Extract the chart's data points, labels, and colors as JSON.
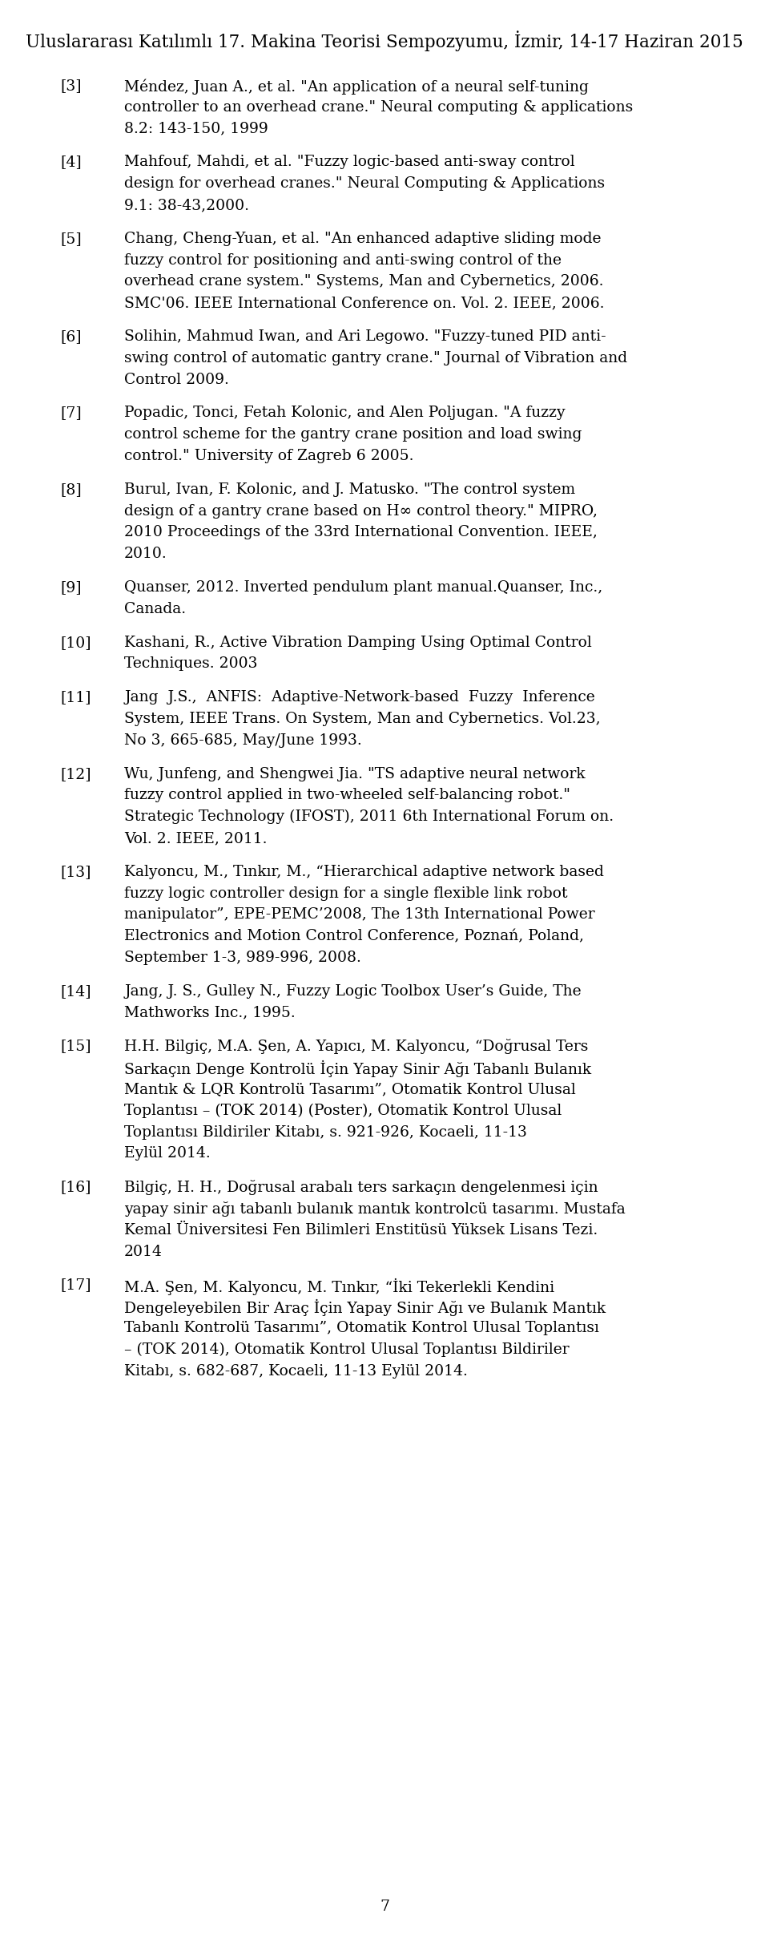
{
  "header": "Uluslararası Katılımlı 17. Makina Teorisi Sempozyumu, İzmir, 14-17 Haziran 2015",
  "page_number": "7",
  "references": [
    {
      "number": "[3]",
      "lines": [
        "Méndez, Juan A., et al. \"An application of a neural self-tuning",
        "controller to an overhead crane.\" Neural computing & applications",
        "8.2: 143-150, 1999"
      ]
    },
    {
      "number": "[4]",
      "lines": [
        "Mahfouf, Mahdi, et al. \"Fuzzy logic-based anti-sway control",
        "design for overhead cranes.\" Neural Computing & Applications",
        "9.1: 38-43,2000."
      ]
    },
    {
      "number": "[5]",
      "lines": [
        "Chang, Cheng-Yuan, et al. \"An enhanced adaptive sliding mode",
        "fuzzy control for positioning and anti-swing control of the",
        "overhead crane system.\" Systems, Man and Cybernetics, 2006.",
        "SMC'06. IEEE International Conference on. Vol. 2. IEEE, 2006."
      ]
    },
    {
      "number": "[6]",
      "lines": [
        "Solihin, Mahmud Iwan, and Ari Legowo. \"Fuzzy-tuned PID anti-",
        "swing control of automatic gantry crane.\" Journal of Vibration and",
        "Control 2009."
      ]
    },
    {
      "number": "[7]",
      "lines": [
        "Popadic, Tonci, Fetah Kolonic, and Alen Poljugan. \"A fuzzy",
        "control scheme for the gantry crane position and load swing",
        "control.\" University of Zagreb 6 2005."
      ]
    },
    {
      "number": "[8]",
      "lines": [
        "Burul, Ivan, F. Kolonic, and J. Matusko. \"The control system",
        "design of a gantry crane based on H∞ control theory.\" MIPRO,",
        "2010 Proceedings of the 33rd International Convention. IEEE,",
        "2010."
      ]
    },
    {
      "number": "[9]",
      "lines": [
        "Quanser, 2012. Inverted pendulum plant manual.Quanser, Inc.,",
        "Canada."
      ]
    },
    {
      "number": "[10]",
      "lines": [
        "Kashani, R., Active Vibration Damping Using Optimal Control",
        "Techniques. 2003"
      ]
    },
    {
      "number": "[11]",
      "lines": [
        "Jang  J.S.,  ANFIS:  Adaptive-Network-based  Fuzzy  Inference",
        "System, IEEE Trans. On System, Man and Cybernetics. Vol.23,",
        "No 3, 665-685, May/June 1993."
      ]
    },
    {
      "number": "[12]",
      "lines": [
        "Wu, Junfeng, and Shengwei Jia. \"TS adaptive neural network",
        "fuzzy control applied in two-wheeled self-balancing robot.\"",
        "Strategic Technology (IFOST), 2011 6th International Forum on.",
        "Vol. 2. IEEE, 2011."
      ]
    },
    {
      "number": "[13]",
      "lines": [
        "Kalyoncu, M., Tınkır, M., “Hierarchical adaptive network based",
        "fuzzy logic controller design for a single flexible link robot",
        "manipulator”, EPE-PEMC’2008, The 13th International Power",
        "Electronics and Motion Control Conference, Poznań, Poland,",
        "September 1-3, 989-996, 2008."
      ]
    },
    {
      "number": "[14]",
      "lines": [
        "Jang, J. S., Gulley N., Fuzzy Logic Toolbox User’s Guide, The",
        "Mathworks Inc., 1995."
      ]
    },
    {
      "number": "[15]",
      "lines": [
        "H.H. Bilgiç, M.A. Şen, A. Yapıcı, M. Kalyoncu, “Doğrusal Ters",
        "Sarkaçın Denge Kontrolü İçin Yapay Sinir Ağı Tabanlı Bulanık",
        "Mantık & LQR Kontrolü Tasarımı”, Otomatik Kontrol Ulusal",
        "Toplantısı – (TOK 2014) (Poster), Otomatik Kontrol Ulusal",
        "Toplantısı Bildiriler Kitabı, s. 921-926, Kocaeli, 11-13",
        "Eylül 2014."
      ]
    },
    {
      "number": "[16]",
      "lines": [
        "Bilgiç, H. H., Doğrusal arabalı ters sarkaçın dengelenmesi için",
        "yapay sinir ağı tabanlı bulanık mantık kontrolcü tasarımı. Mustafa",
        "Kemal Üniversitesi Fen Bilimleri Enstitüsü Yüksek Lisans Tezi.",
        "2014"
      ]
    },
    {
      "number": "[17]",
      "lines": [
        "M.A. Şen, M. Kalyoncu, M. Tınkır, “İki Tekerlekli Kendini",
        "Dengeleyebilen Bir Araç İçin Yapay Sinir Ağı ve Bulanık Mantık",
        "Tabanlı Kontrolü Tasarımı”, Otomatik Kontrol Ulusal Toplantısı",
        "– (TOK 2014), Otomatik Kontrol Ulusal Toplantısı Bildiriler",
        "Kitabı, s. 682-687, Kocaeli, 11-13 Eylül 2014."
      ]
    }
  ],
  "background_color": "#ffffff",
  "text_color": "#000000",
  "header_fontsize": 15.5,
  "ref_fontsize": 13.5,
  "num_fontsize": 13.5,
  "page_fontsize": 13.5,
  "font_family": "DejaVu Serif"
}
